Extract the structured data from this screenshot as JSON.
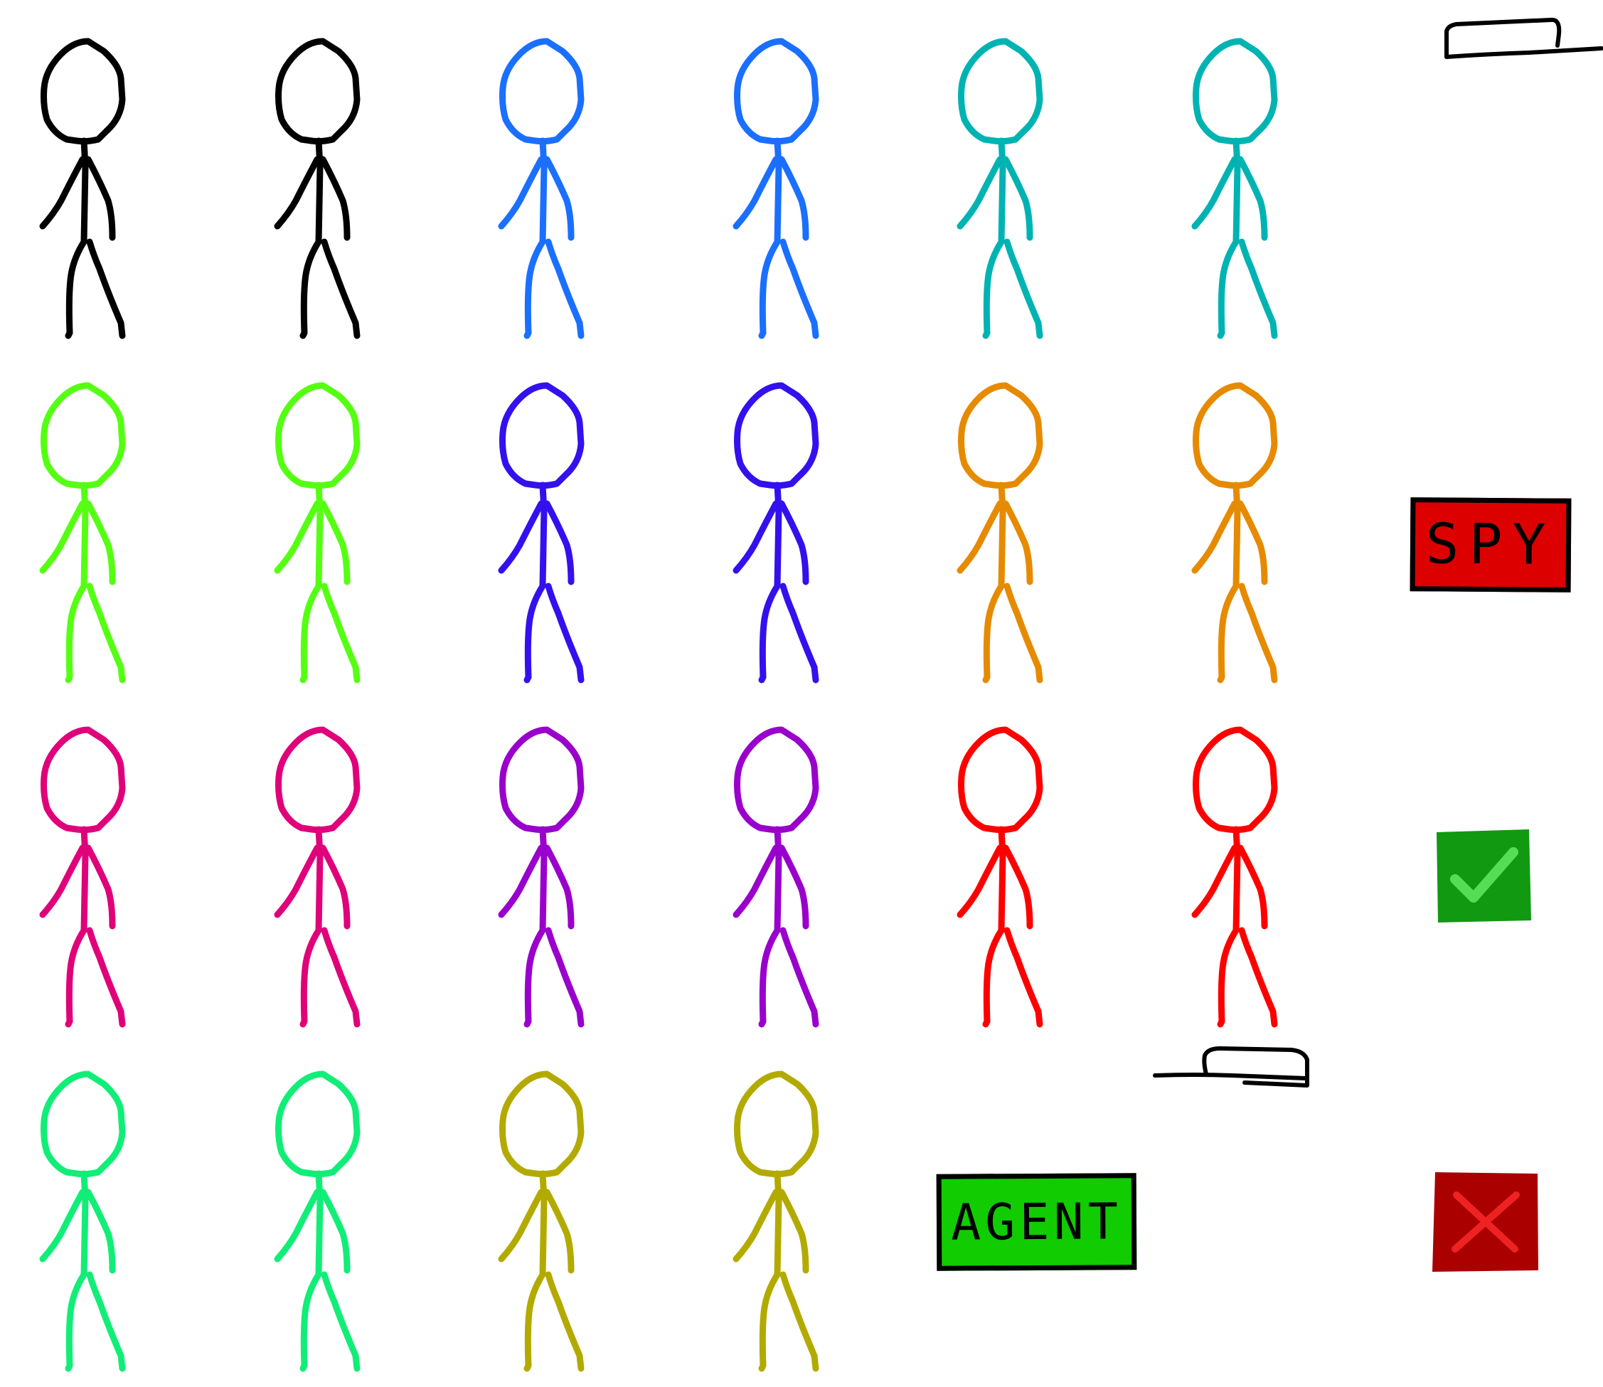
{
  "screen": {
    "name": "spy-or-agent-selection",
    "background": "#ffffff"
  },
  "figures": [
    {
      "id": "figure-1",
      "color": "#000000"
    },
    {
      "id": "figure-2",
      "color": "#000000"
    },
    {
      "id": "figure-3",
      "color": "#1a6fff"
    },
    {
      "id": "figure-4",
      "color": "#1a6fff"
    },
    {
      "id": "figure-5",
      "color": "#00b3b3"
    },
    {
      "id": "figure-6",
      "color": "#00b3b3"
    },
    {
      "id": "figure-7",
      "color": "#55ff11"
    },
    {
      "id": "figure-8",
      "color": "#55ff11"
    },
    {
      "id": "figure-9",
      "color": "#3311ee"
    },
    {
      "id": "figure-10",
      "color": "#3311ee"
    },
    {
      "id": "figure-11",
      "color": "#e68a00"
    },
    {
      "id": "figure-12",
      "color": "#e68a00"
    },
    {
      "id": "figure-13",
      "color": "#e0007a"
    },
    {
      "id": "figure-14",
      "color": "#e0007a"
    },
    {
      "id": "figure-15",
      "color": "#9900cc"
    },
    {
      "id": "figure-16",
      "color": "#9900cc"
    },
    {
      "id": "figure-17",
      "color": "#ff0000"
    },
    {
      "id": "figure-18",
      "color": "#ff0000"
    },
    {
      "id": "figure-19",
      "color": "#11ee77"
    },
    {
      "id": "figure-20",
      "color": "#11ee77"
    },
    {
      "id": "figure-21",
      "color": "#b3aa00"
    },
    {
      "id": "figure-22",
      "color": "#b3aa00"
    }
  ],
  "buttons": {
    "spy": {
      "label": "SPY",
      "color": "#dd0000"
    },
    "agent": {
      "label": "AGENT",
      "color": "#11cc00"
    },
    "confirm": {
      "icon": "checkmark-icon",
      "color": "#119911",
      "mark_color": "#55dd55"
    },
    "cancel": {
      "icon": "x-mark-icon",
      "color": "#aa0000",
      "mark_color": "#ee2222"
    }
  },
  "decorations": {
    "top_lamp": {
      "icon": "desk-lamp-icon",
      "color": "#000000"
    },
    "bottom_lamp": {
      "icon": "desk-lamp-icon",
      "color": "#000000"
    }
  }
}
